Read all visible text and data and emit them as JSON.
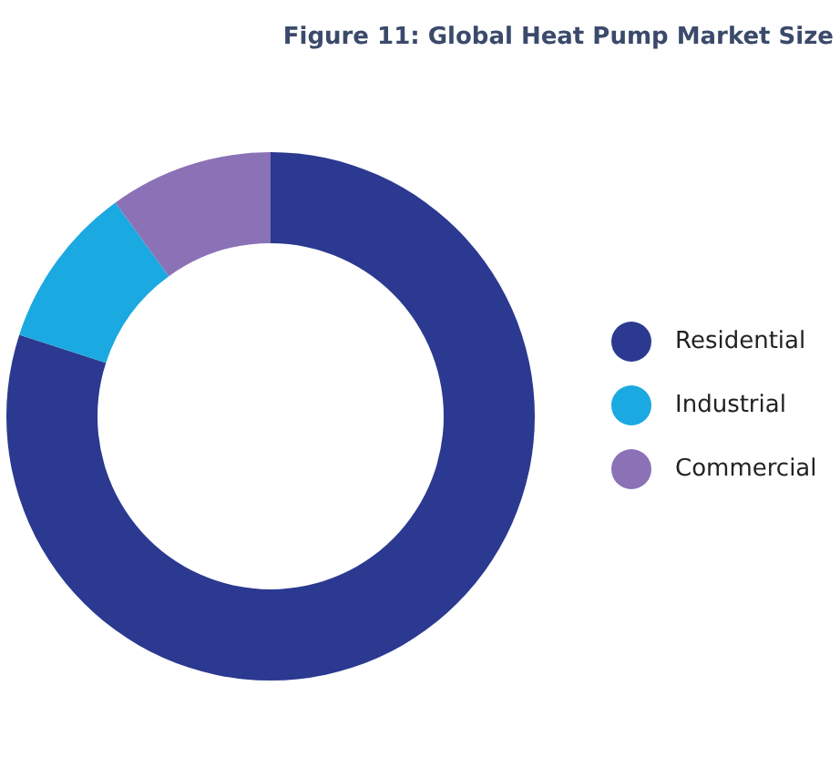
{
  "chart_data": {
    "type": "donut",
    "title": "Figure 11: Global Heat Pump Market Size",
    "categories": [
      "Residential",
      "Industrial",
      "Commercial"
    ],
    "values": [
      80,
      10,
      10
    ],
    "colors": [
      "#2b3990",
      "#1ba9e1",
      "#8b72b7"
    ],
    "legend": "right"
  }
}
